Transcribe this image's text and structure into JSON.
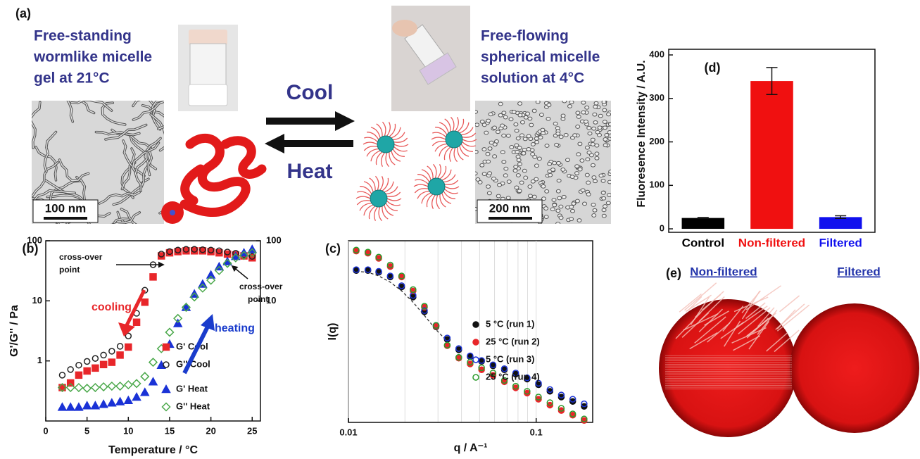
{
  "panel_a": {
    "label": "(a)",
    "left_caption": [
      "Free-standing",
      "wormlike micelle",
      "gel at 21°C"
    ],
    "right_caption": [
      "Free-flowing",
      "spherical micelle",
      "solution at 4°C"
    ],
    "cool": "Cool",
    "heat": "Heat",
    "left_scale": "100 nm",
    "right_scale": "200 nm"
  },
  "chart_data": [
    {
      "type": "scatter",
      "panel_label": "(b)",
      "x_label": "Temperature / °C",
      "y_label": "G'/G'' / Pa",
      "log_scale": "y",
      "x": [
        2,
        3,
        4,
        5,
        6,
        7,
        8,
        9,
        10,
        11,
        12,
        13,
        14,
        15,
        16,
        17,
        18,
        19,
        20,
        21,
        22,
        23,
        24,
        25
      ],
      "xlim": [
        0,
        26
      ],
      "xticks": [
        0,
        5,
        10,
        15,
        20,
        25
      ],
      "ylim": [
        0.1,
        100
      ],
      "yticks": [
        1,
        10,
        100
      ],
      "y2lim": [
        0.1,
        100
      ],
      "y2ticks": [
        10,
        100
      ],
      "series": [
        {
          "name": "G' Cool",
          "color": "#e8262a",
          "marker": "square",
          "filled": true,
          "values": [
            0.36,
            0.43,
            0.58,
            0.68,
            0.76,
            0.87,
            0.95,
            1.25,
            1.7,
            4.4,
            9.5,
            25,
            56,
            63,
            66,
            68,
            68,
            68,
            66,
            63,
            60,
            58,
            56,
            52
          ]
        },
        {
          "name": "G'' Cool",
          "color": "#222222",
          "marker": "circle",
          "filled": false,
          "values": [
            0.58,
            0.72,
            0.85,
            0.98,
            1.1,
            1.25,
            1.45,
            1.75,
            2.6,
            6.2,
            15,
            40,
            60,
            66,
            70,
            72,
            72,
            71,
            70,
            68,
            65,
            62,
            58,
            55
          ]
        },
        {
          "name": "G' Heat",
          "color": "#1a32d6",
          "marker": "triangle",
          "filled": true,
          "values": [
            0.17,
            0.17,
            0.17,
            0.18,
            0.18,
            0.19,
            0.2,
            0.21,
            0.22,
            0.25,
            0.3,
            0.45,
            0.85,
            1.9,
            4.2,
            7.8,
            13,
            19,
            27,
            37,
            45,
            55,
            63,
            72
          ]
        },
        {
          "name": "G'' Heat",
          "color": "#4aa84a",
          "marker": "diamond",
          "filled": false,
          "values": [
            0.36,
            0.36,
            0.36,
            0.35,
            0.36,
            0.37,
            0.38,
            0.38,
            0.4,
            0.42,
            0.55,
            0.95,
            1.6,
            3.0,
            5.1,
            7.8,
            11.6,
            16.3,
            22,
            32,
            42,
            52,
            57,
            63
          ]
        }
      ],
      "annotations": [
        {
          "lines": [
            "cross-over",
            "point"
          ],
          "color": "#111111"
        },
        {
          "lines": [
            "cross-over",
            "point"
          ],
          "color": "#111111"
        },
        {
          "lines": [
            "cooling"
          ],
          "color": "#e8262a"
        },
        {
          "lines": [
            "heating"
          ],
          "color": "#1a3ccc"
        }
      ]
    },
    {
      "type": "scatter",
      "panel_label": "(c)",
      "x_label": "q / A⁻¹",
      "y_label": "I(q)",
      "log_scale": "xy",
      "grid": true,
      "legend": "upper right",
      "x": [
        0.011,
        0.0127,
        0.0145,
        0.0167,
        0.0192,
        0.0221,
        0.0254,
        0.0293,
        0.0336,
        0.0387,
        0.0445,
        0.0512,
        0.0589,
        0.0677,
        0.0778,
        0.0895,
        0.1029,
        0.1184,
        0.1361,
        0.1566,
        0.1801
      ],
      "xlim": [
        0.01,
        0.2
      ],
      "xticks": [
        0.01,
        0.1
      ],
      "xminor": [
        0.02,
        0.03,
        0.04,
        0.05,
        0.06,
        0.07,
        0.08,
        0.09,
        0.2
      ],
      "ylim": [
        1,
        100
      ],
      "series": [
        {
          "name": "5 °C (run 1)",
          "color": "#111111",
          "filled": true,
          "values": [
            47,
            47,
            45,
            40,
            31,
            24,
            16.5,
            11.3,
            8.2,
            6.3,
            5.3,
            4.7,
            4.2,
            3.8,
            3.4,
            3.0,
            2.6,
            2.2,
            1.9,
            1.7,
            1.5
          ]
        },
        {
          "name": "25 °C (run 2)",
          "color": "#e8262a",
          "filled": true,
          "values": [
            77,
            73,
            64,
            52,
            40,
            28,
            18.5,
            11.5,
            7.0,
            5.1,
            4.4,
            3.8,
            3.3,
            2.8,
            2.4,
            2.1,
            1.8,
            1.55,
            1.35,
            1.2,
            1.05
          ]
        },
        {
          "name": "5 °C (run 3)",
          "color": "#1a32d6",
          "filled": false,
          "values": [
            48,
            48,
            46,
            41,
            32,
            25,
            17,
            11.7,
            8.5,
            6.5,
            5.4,
            4.8,
            4.3,
            3.9,
            3.5,
            3.1,
            2.7,
            2.3,
            2.0,
            1.8,
            1.6
          ]
        },
        {
          "name": "25 °C (run 4)",
          "color": "#2a9a2a",
          "filled": false,
          "values": [
            79,
            75,
            66,
            54,
            41,
            29,
            19,
            11.7,
            7.1,
            5.2,
            4.6,
            4.0,
            3.5,
            2.9,
            2.5,
            2.2,
            1.9,
            1.65,
            1.43,
            1.24,
            1.09
          ]
        }
      ],
      "fit": {
        "color": "#333333",
        "dash": true,
        "values": [
          46,
          45,
          41,
          35,
          28,
          21,
          15,
          10.5,
          7.8,
          null,
          null,
          null,
          null,
          null,
          null,
          null,
          null,
          null,
          null,
          null,
          null
        ]
      }
    },
    {
      "type": "bar",
      "panel_label": "(d)",
      "y_label": "Fluoresence Intensity / A.U.",
      "categories": [
        "Control",
        "Non-filtered",
        "Filtered"
      ],
      "colors": [
        "#000000",
        "#f01010",
        "#1010ee"
      ],
      "values": [
        25,
        340,
        27
      ],
      "errors": [
        1,
        31,
        3
      ],
      "ylim": [
        -8,
        413
      ],
      "yticks": [
        0,
        100,
        200,
        300,
        400
      ]
    }
  ],
  "panel_e": {
    "label": "(e)",
    "left_title": "Non-filtered",
    "right_title": "Filtered"
  }
}
